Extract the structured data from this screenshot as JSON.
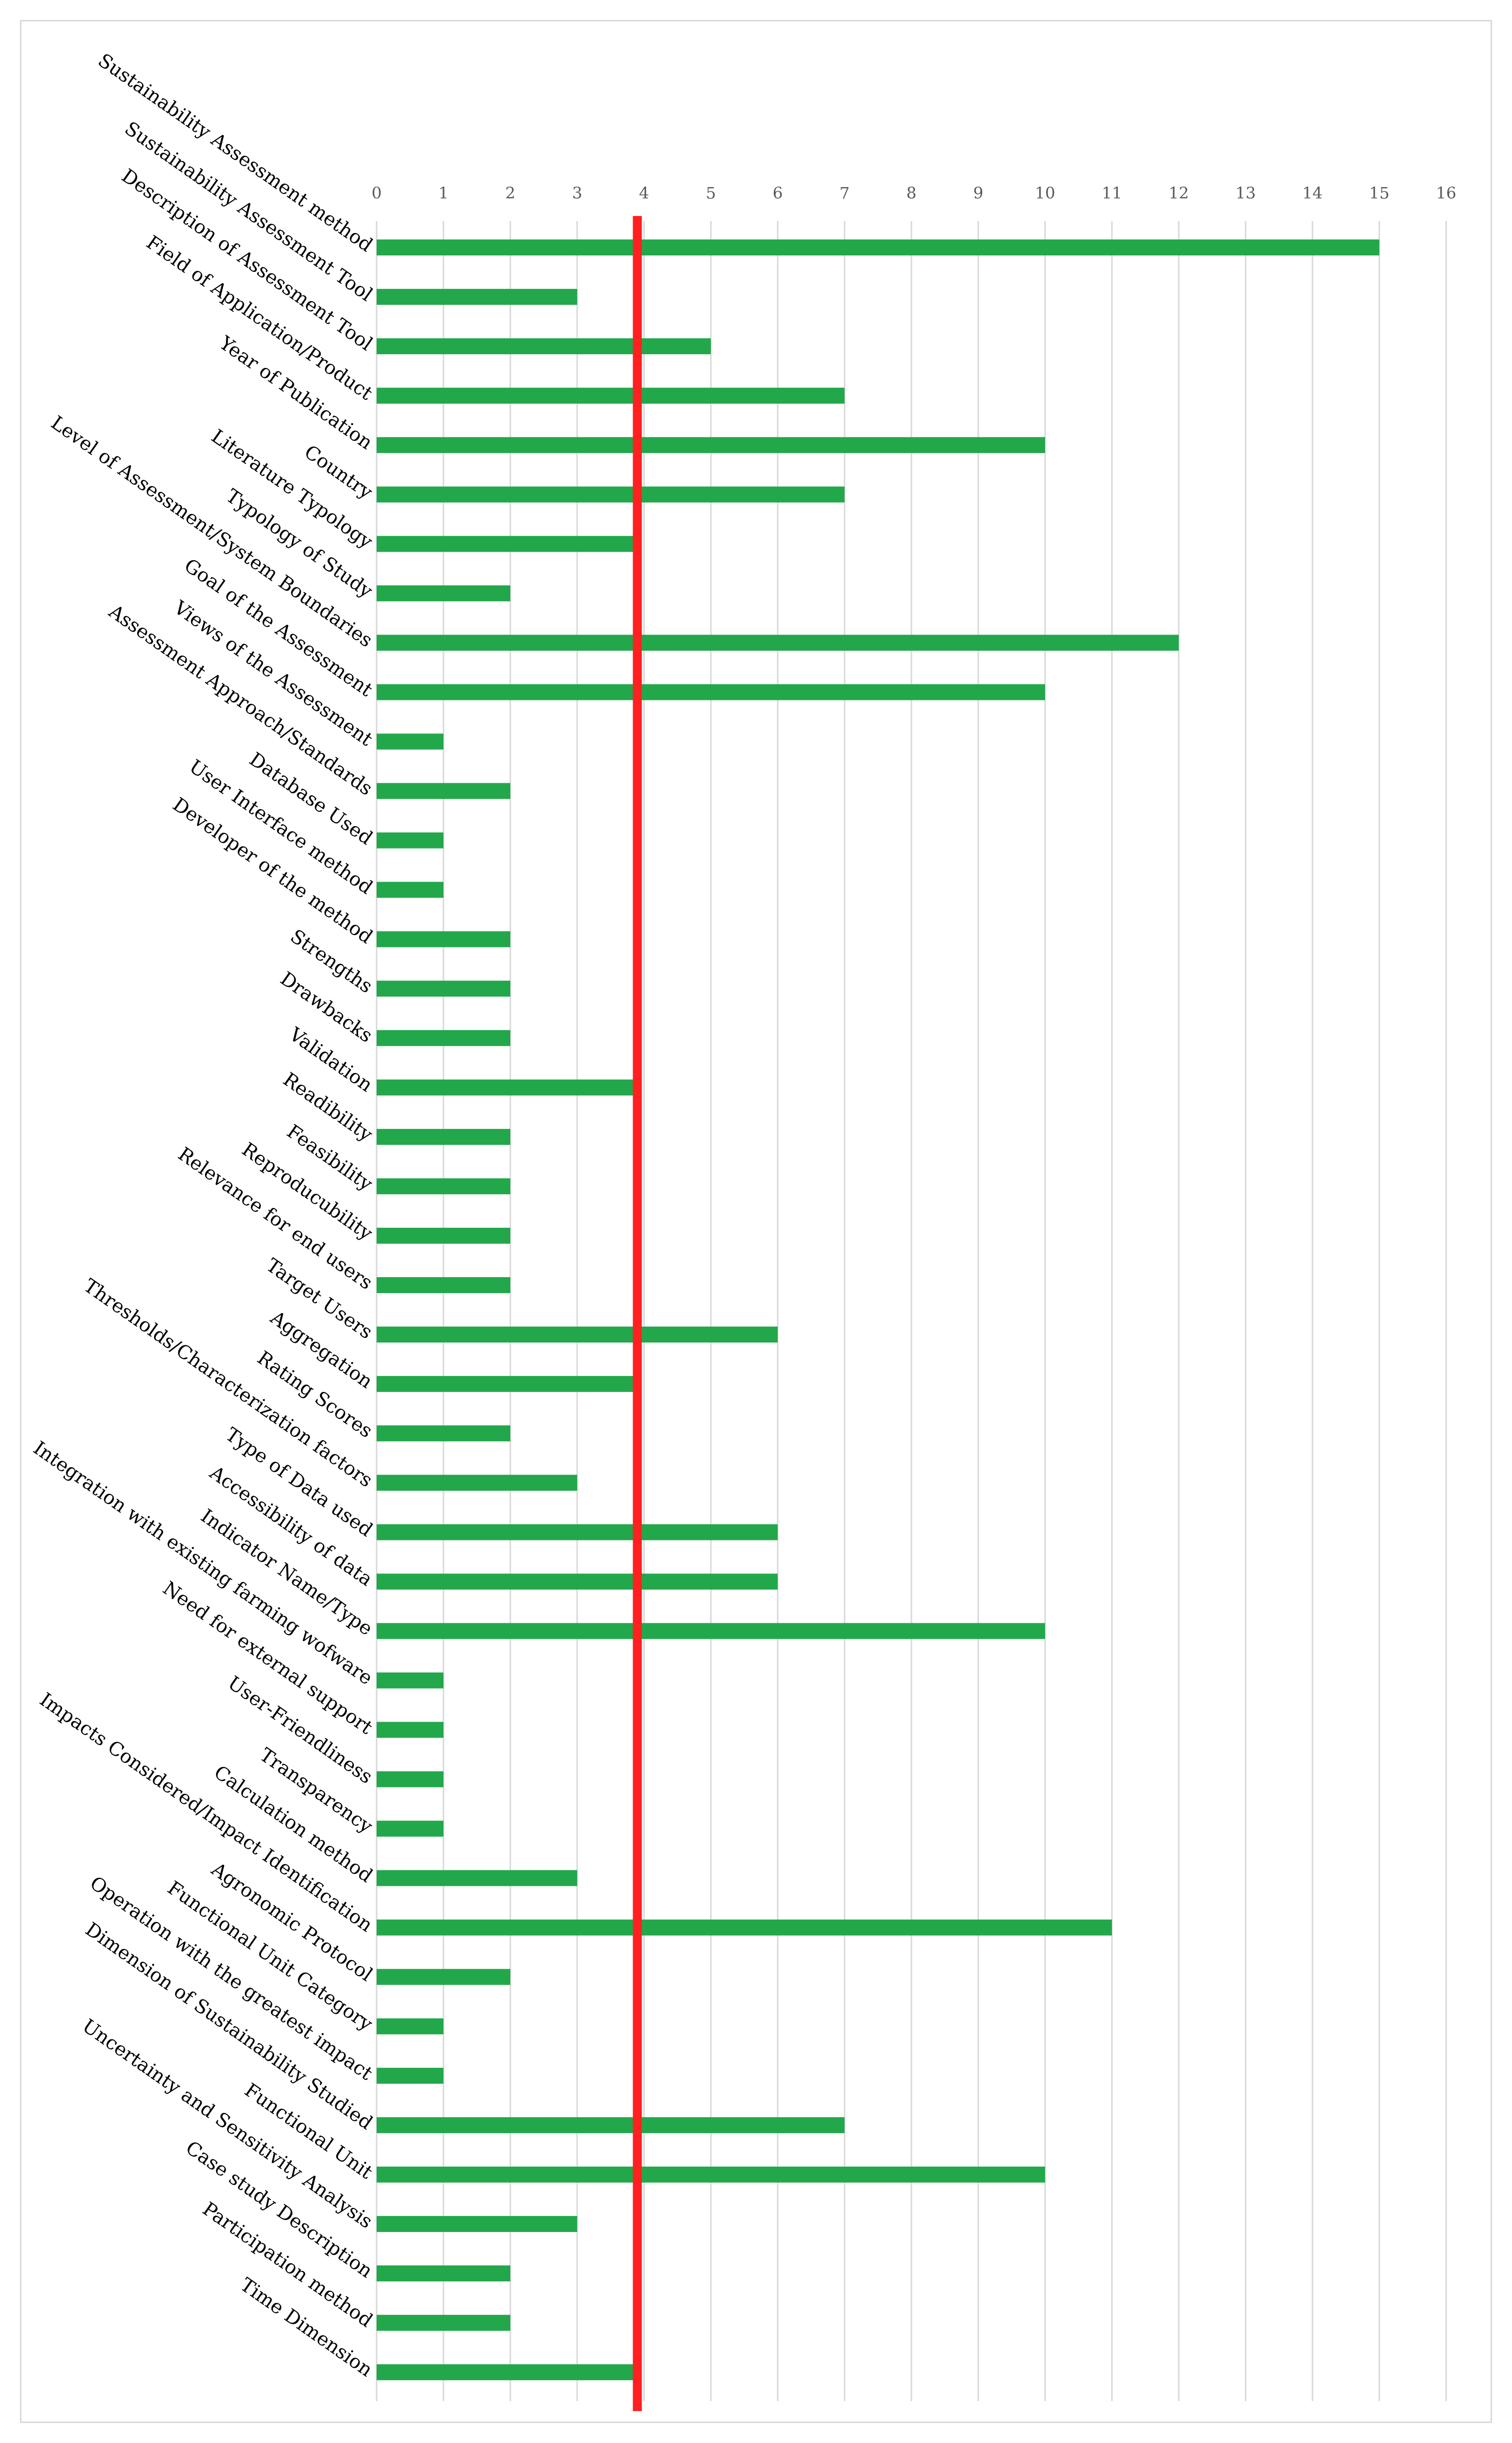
{
  "chart_data": {
    "type": "bar",
    "orientation": "horizontal",
    "title": "",
    "xlabel": "",
    "ylabel": "",
    "xlim": [
      0,
      16
    ],
    "x_ticks": [
      "0",
      "1",
      "2",
      "3",
      "4",
      "5",
      "6",
      "7",
      "8",
      "9",
      "10",
      "11",
      "12",
      "13",
      "14",
      "15",
      "16"
    ],
    "grid": true,
    "bar_color": "#22a84a",
    "reference_line": {
      "value": 3.9,
      "color": "#ff2020"
    },
    "categories": [
      "Sustainability Assessment method",
      "Sustainability Assessment Tool",
      "Description of Assessment Tool",
      "Field of Application/Product",
      "Year of Publication",
      "Country",
      "Literature Typology",
      "Typology of Study",
      "Level of Assessment/System Boundaries",
      "Goal of the Assessment",
      "Views of the Assessment",
      "Assessment Approach/Standards",
      "Database Used",
      "User Interface method",
      "Developer of the method",
      "Strengths",
      "Drawbacks",
      "Validation",
      "Readibility",
      "Feasibility",
      "Reproducubility",
      "Relevance for end users",
      "Target Users",
      "Aggregation",
      "Rating Scores",
      "Thresholds/Characterization factors",
      "Type of Data used",
      "Accessibility of data",
      "Indicator Name/Type",
      "Integration with existing farming wofware",
      "Need for external support",
      "User-Friendliness",
      "Transparency",
      "Calculation method",
      "Impacts Considered/Impact Identification",
      "Agronomic Protocol",
      "Functional Unit Category",
      "Operation with the greatest impact",
      "Dimension of Sustainability Studied",
      "Functional Unit",
      "Uncertainty and Sensitivity Analysis",
      "Case study Description",
      "Participation method",
      "Time Dimension"
    ],
    "values": [
      15,
      3,
      5,
      7,
      10,
      7,
      3.9,
      2,
      12,
      10,
      1,
      2,
      1,
      1,
      2,
      2,
      2,
      3.9,
      2,
      2,
      2,
      2,
      6,
      3.9,
      2,
      3,
      6,
      6,
      10,
      1,
      1,
      1,
      1,
      3,
      11,
      2,
      1,
      1,
      7,
      10,
      3,
      2,
      2,
      3.9
    ]
  }
}
